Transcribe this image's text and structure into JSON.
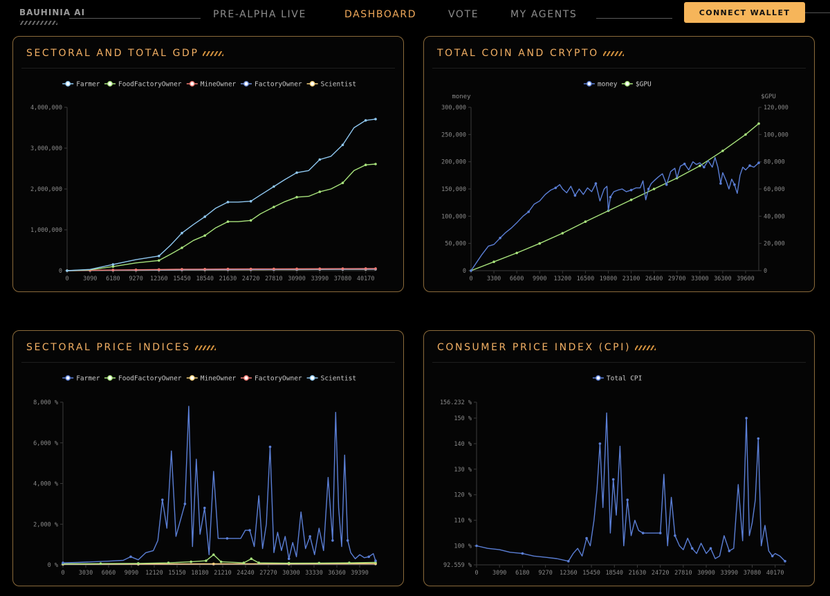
{
  "app": {
    "brand": "BAUHINIA AI"
  },
  "nav": {
    "items": [
      {
        "label": "PRE-ALPHA LIVE",
        "active": false
      },
      {
        "label": "DASHBOARD",
        "active": true
      },
      {
        "label": "VOTE",
        "active": false
      },
      {
        "label": "MY AGENTS",
        "active": false
      }
    ],
    "connect_wallet": "CONNECT WALLET"
  },
  "colors": {
    "accent": "#f3b064",
    "panel_border": "#8a6a3a",
    "button": "#f6b55a"
  },
  "panels": [
    {
      "id": "gdp",
      "title": "SECTORAL AND TOTAL GDP"
    },
    {
      "id": "coin",
      "title": "TOTAL COIN AND CRYPTO"
    },
    {
      "id": "price",
      "title": "SECTORAL PRICE INDICES"
    },
    {
      "id": "cpi",
      "title": "CONSUMER PRICE INDEX (CPI)"
    }
  ],
  "chart_data": [
    {
      "id": "gdp",
      "type": "line",
      "title": "SECTORAL AND TOTAL GDP",
      "legend_position": "top",
      "x_ticks": [
        "0",
        "3090",
        "6180",
        "9270",
        "12360",
        "15450",
        "18540",
        "21630",
        "24720",
        "27810",
        "30900",
        "33990",
        "37080",
        "40170"
      ],
      "xlim": [
        0,
        41500
      ],
      "ylim": [
        0,
        4000000
      ],
      "y_ticks": [
        "0",
        "1,000,000",
        "2,000,000",
        "3,000,000",
        "4,000,000"
      ],
      "y_tick_values": [
        0,
        1000000,
        2000000,
        3000000,
        4000000
      ],
      "series": [
        {
          "name": "Farmer",
          "color": "#8fc7f0",
          "x": [
            0,
            3090,
            6180,
            9270,
            12360,
            13900,
            15450,
            17000,
            18540,
            20000,
            21630,
            23000,
            24720,
            26000,
            27810,
            29300,
            30900,
            32500,
            33990,
            35500,
            37080,
            38600,
            40170,
            41500
          ],
          "y": [
            0,
            30000,
            150000,
            270000,
            360000,
            620000,
            920000,
            1130000,
            1320000,
            1530000,
            1680000,
            1680000,
            1700000,
            1850000,
            2060000,
            2230000,
            2400000,
            2450000,
            2720000,
            2800000,
            3080000,
            3500000,
            3680000,
            3710000
          ]
        },
        {
          "name": "FoodFactoryOwner",
          "color": "#a8e37c",
          "x": [
            0,
            3090,
            6180,
            9270,
            12360,
            13900,
            15450,
            17000,
            18540,
            20000,
            21630,
            23000,
            24720,
            26000,
            27810,
            29300,
            30900,
            32500,
            33990,
            35500,
            37080,
            38600,
            40170,
            41500
          ],
          "y": [
            0,
            20000,
            100000,
            190000,
            250000,
            400000,
            560000,
            740000,
            860000,
            1050000,
            1200000,
            1200000,
            1230000,
            1390000,
            1560000,
            1690000,
            1800000,
            1820000,
            1930000,
            2000000,
            2150000,
            2450000,
            2590000,
            2610000
          ]
        },
        {
          "name": "MineOwner",
          "color": "#f07a72",
          "x": [
            0,
            3090,
            6180,
            9270,
            12360,
            15450,
            18540,
            21630,
            24720,
            27810,
            30900,
            33990,
            37080,
            40170,
            41500
          ],
          "y": [
            0,
            8000,
            15000,
            22000,
            28000,
            35000,
            38000,
            40000,
            42000,
            44000,
            46000,
            48000,
            50000,
            52000,
            53000
          ]
        },
        {
          "name": "FactoryOwner",
          "color": "#6f8fd8",
          "x": [
            0,
            3090,
            6180,
            9270,
            12360,
            15450,
            18540,
            21630,
            24720,
            27810,
            30900,
            33990,
            37080,
            40170,
            41500
          ],
          "y": [
            0,
            5000,
            10000,
            14000,
            18000,
            22000,
            25000,
            27000,
            29000,
            31000,
            33000,
            35000,
            36000,
            37000,
            38000
          ]
        },
        {
          "name": "Scientist",
          "color": "#f4cf7c",
          "x": [
            0,
            3090,
            6180,
            9270,
            12360,
            15450,
            18540,
            21630,
            24720,
            27810,
            30900,
            33990,
            37080,
            40170,
            41500
          ],
          "y": [
            0,
            3000,
            6000,
            9000,
            12000,
            15000,
            18000,
            20000,
            22000,
            24000,
            26000,
            28000,
            30000,
            31000,
            32000
          ]
        }
      ]
    },
    {
      "id": "coin",
      "type": "line",
      "title": "TOTAL COIN AND CRYPTO",
      "legend_position": "top",
      "ylabel_left": "money",
      "ylabel_right": "$GPU",
      "x_ticks": [
        "0",
        "3300",
        "6600",
        "9900",
        "13200",
        "16500",
        "19800",
        "23100",
        "26400",
        "29700",
        "33000",
        "36300",
        "39600"
      ],
      "xlim": [
        0,
        41500
      ],
      "ylim_left": [
        0,
        300000
      ],
      "y_ticks_left": [
        "0",
        "50,000",
        "100,000",
        "150,000",
        "200,000",
        "250,000",
        "300,000"
      ],
      "ylim_right": [
        0,
        120000
      ],
      "y_ticks_right": [
        "0",
        "20,000",
        "40,000",
        "60,000",
        "80,000",
        "100,000",
        "120,000"
      ],
      "series": [
        {
          "name": "money",
          "color": "#5b7fd6",
          "axis": "left",
          "x": [
            0,
            800,
            1600,
            2500,
            3300,
            4200,
            5000,
            5800,
            6600,
            7500,
            8300,
            9100,
            9900,
            10700,
            11500,
            12200,
            12800,
            13200,
            13800,
            14400,
            15000,
            15600,
            16200,
            16800,
            17400,
            18000,
            18600,
            19200,
            19600,
            19800,
            20100,
            20600,
            21200,
            21800,
            22400,
            23100,
            23800,
            24400,
            24800,
            25200,
            25600,
            26000,
            26400,
            27000,
            27600,
            28200,
            28800,
            29400,
            29700,
            30200,
            30800,
            31400,
            32000,
            32500,
            33000,
            33600,
            34200,
            34800,
            35200,
            35600,
            36000,
            36300,
            36800,
            37200,
            37600,
            38000,
            38400,
            38800,
            39200,
            39600,
            40200,
            40800,
            41500
          ],
          "y": [
            0,
            15000,
            30000,
            45000,
            48000,
            60000,
            70000,
            78000,
            88000,
            100000,
            108000,
            122000,
            128000,
            140000,
            148000,
            152000,
            158000,
            150000,
            143000,
            155000,
            138000,
            150000,
            140000,
            152000,
            145000,
            160000,
            128000,
            150000,
            155000,
            110000,
            135000,
            145000,
            148000,
            150000,
            145000,
            148000,
            152000,
            152000,
            165000,
            130000,
            150000,
            160000,
            165000,
            172000,
            178000,
            158000,
            182000,
            188000,
            170000,
            192000,
            196000,
            185000,
            200000,
            195000,
            198000,
            190000,
            202000,
            190000,
            208000,
            190000,
            160000,
            180000,
            165000,
            150000,
            168000,
            158000,
            142000,
            175000,
            190000,
            185000,
            193000,
            190000,
            198000
          ]
        },
        {
          "name": "$GPU",
          "color": "#a8e37c",
          "axis": "right",
          "x": [
            0,
            3300,
            6600,
            9900,
            13200,
            16500,
            19800,
            23100,
            26400,
            29700,
            33000,
            36300,
            39600,
            41500
          ],
          "y": [
            0,
            6500,
            13000,
            20000,
            27500,
            36000,
            44000,
            52000,
            60000,
            68000,
            77000,
            88000,
            100000,
            108000
          ]
        }
      ]
    },
    {
      "id": "price",
      "type": "line",
      "title": "SECTORAL PRICE INDICES",
      "legend_position": "top",
      "x_ticks": [
        "0",
        "3030",
        "6060",
        "9090",
        "12120",
        "15150",
        "18180",
        "21210",
        "24240",
        "27270",
        "30300",
        "33330",
        "36360",
        "39390"
      ],
      "xlim": [
        0,
        41500
      ],
      "ylim": [
        0,
        8000
      ],
      "y_ticks": [
        "0 %",
        "2,000 %",
        "4,000 %",
        "6,000 %",
        "8,000 %"
      ],
      "y_tick_values": [
        0,
        2000,
        4000,
        6000,
        8000
      ],
      "series": [
        {
          "name": "Farmer",
          "color": "#5b7fd6",
          "x": [
            0,
            2000,
            4000,
            6000,
            8000,
            9000,
            10000,
            11000,
            12000,
            12600,
            13200,
            13800,
            14400,
            15000,
            15600,
            16200,
            16700,
            17200,
            17700,
            18200,
            18800,
            19400,
            20000,
            20600,
            21200,
            21800,
            22400,
            23000,
            23600,
            24200,
            24800,
            25400,
            26000,
            26500,
            27000,
            27500,
            28000,
            28500,
            29000,
            29500,
            30000,
            30500,
            31000,
            31600,
            32200,
            32800,
            33400,
            34000,
            34600,
            35200,
            35800,
            36200,
            36600,
            37000,
            37400,
            37800,
            38200,
            38800,
            39400,
            40000,
            40600,
            41200,
            41500
          ],
          "y": [
            100,
            120,
            150,
            180,
            220,
            400,
            250,
            600,
            700,
            1200,
            3200,
            1800,
            5600,
            1400,
            2200,
            3000,
            7800,
            900,
            5200,
            1500,
            2800,
            500,
            4600,
            1300,
            1300,
            1300,
            1300,
            1300,
            1300,
            1700,
            1700,
            900,
            3400,
            800,
            2000,
            5800,
            600,
            1600,
            700,
            1400,
            300,
            1100,
            400,
            2600,
            800,
            1400,
            500,
            1800,
            700,
            4300,
            1200,
            7500,
            2800,
            900,
            5400,
            1200,
            600,
            300,
            500,
            350,
            400,
            550,
            200
          ]
        },
        {
          "name": "FoodFactoryOwner",
          "color": "#a8e37c",
          "x": [
            0,
            5000,
            10000,
            14000,
            17000,
            19000,
            20000,
            21000,
            24000,
            25000,
            26000,
            30000,
            34000,
            38000,
            41500
          ],
          "y": [
            50,
            60,
            70,
            100,
            150,
            200,
            500,
            150,
            100,
            300,
            100,
            80,
            90,
            100,
            120
          ]
        },
        {
          "name": "MineOwner",
          "color": "#f4cf7c",
          "x": [
            0,
            10000,
            20000,
            30000,
            41500
          ],
          "y": [
            40,
            45,
            50,
            55,
            60
          ]
        },
        {
          "name": "FactoryOwner",
          "color": "#f07a72",
          "x": [
            0,
            10000,
            20000,
            30000,
            41500
          ],
          "y": [
            30,
            35,
            40,
            45,
            50
          ]
        },
        {
          "name": "Scientist",
          "color": "#8fc7f0",
          "x": [
            0,
            10000,
            20000,
            30000,
            41500
          ],
          "y": [
            20,
            25,
            30,
            35,
            40
          ]
        }
      ]
    },
    {
      "id": "cpi",
      "type": "line",
      "title": "CONSUMER PRICE INDEX (CPI)",
      "legend_position": "top",
      "x_ticks": [
        "0",
        "3090",
        "6180",
        "9270",
        "12360",
        "15450",
        "18540",
        "21630",
        "24720",
        "27810",
        "30900",
        "33990",
        "37080",
        "40170"
      ],
      "xlim": [
        0,
        41500
      ],
      "ylim": [
        92.559,
        156.232
      ],
      "y_ticks": [
        "92.559 %",
        "100 %",
        "110 %",
        "120 %",
        "130 %",
        "140 %",
        "150 %",
        "156.232 %"
      ],
      "y_tick_values": [
        92.559,
        100,
        110,
        120,
        130,
        140,
        150,
        156.232
      ],
      "series": [
        {
          "name": "Total CPI",
          "color": "#5b7fd6",
          "x": [
            0,
            1500,
            3090,
            4500,
            6180,
            7700,
            9270,
            10800,
            12360,
            13000,
            13600,
            14200,
            14800,
            15300,
            15800,
            16200,
            16600,
            17000,
            17500,
            18000,
            18400,
            18800,
            19300,
            19800,
            20300,
            20800,
            21300,
            21800,
            22400,
            23000,
            23600,
            24200,
            24720,
            25200,
            25700,
            26200,
            26700,
            27300,
            27810,
            28400,
            29000,
            29600,
            30200,
            30900,
            31500,
            32100,
            32700,
            33300,
            33990,
            34600,
            35200,
            35800,
            36300,
            36700,
            37080,
            37500,
            37900,
            38300,
            38800,
            39300,
            39800,
            40170,
            40800,
            41500
          ],
          "y": [
            100,
            99,
            98.5,
            97.5,
            97,
            96,
            95.5,
            95,
            94,
            97,
            99,
            96,
            103,
            100,
            110,
            122,
            140,
            115,
            152,
            105,
            126,
            112,
            139,
            100,
            118,
            104,
            110,
            106,
            105,
            105,
            105,
            105,
            105,
            128,
            100,
            119,
            104,
            100,
            98.5,
            103,
            99,
            97,
            101,
            97,
            99,
            95,
            96,
            104,
            98,
            99,
            124,
            102,
            150,
            104,
            109,
            118,
            142,
            100,
            108,
            98,
            96,
            97,
            96,
            94
          ]
        }
      ]
    }
  ]
}
